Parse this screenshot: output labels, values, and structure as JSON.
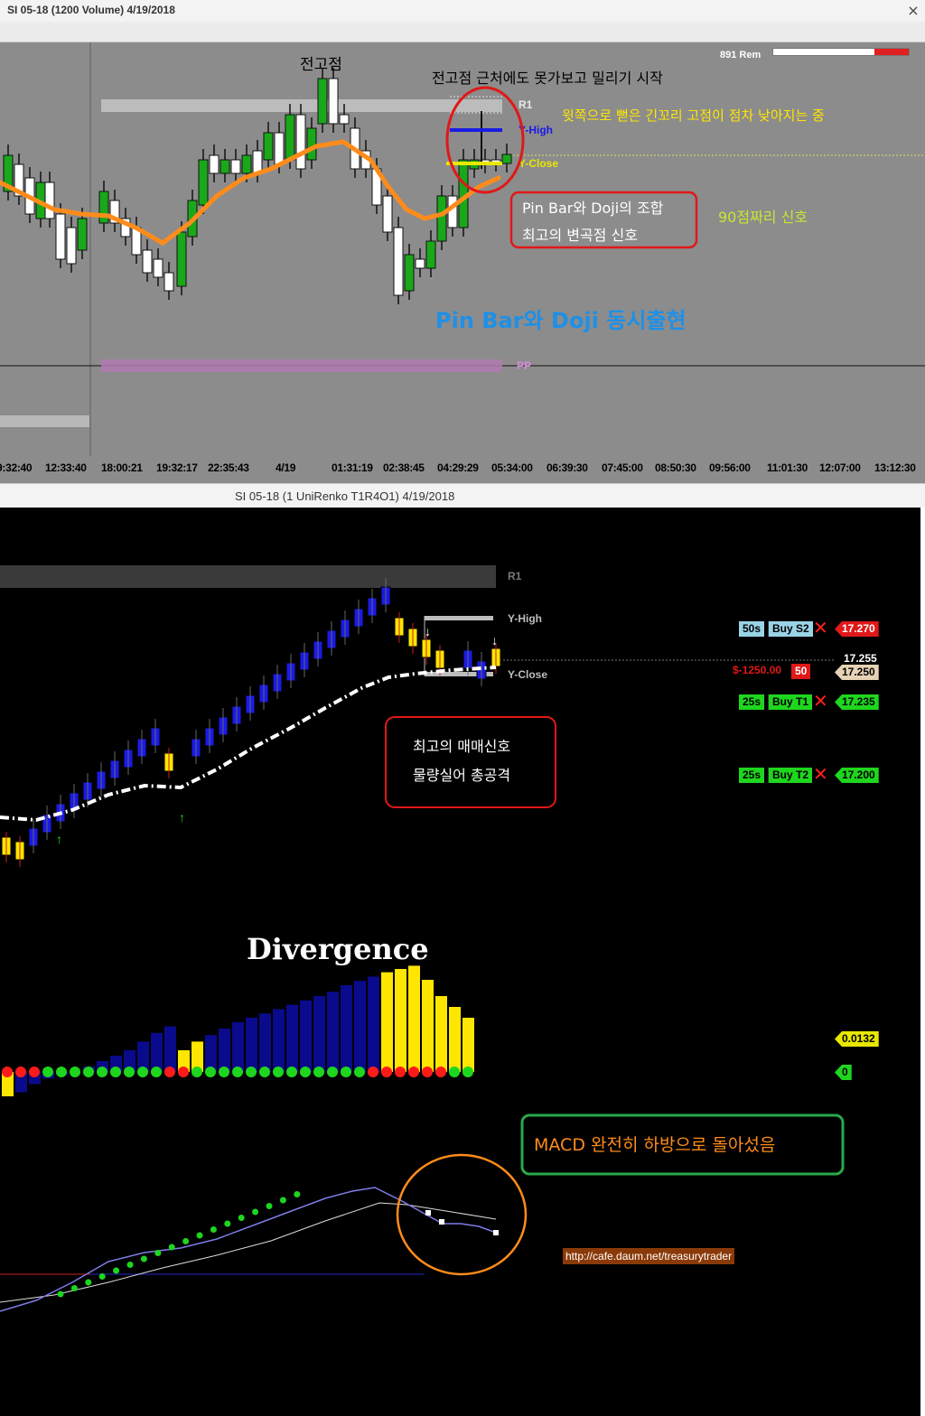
{
  "window1": {
    "title": "SI 05-18 (1200 Volume)  4/19/2018",
    "close_label": "×",
    "rem_text": "891 Rem",
    "xaxis_ticks": [
      "9:32:40",
      "12:33:40",
      "18:00:21",
      "19:32:17",
      "22:35:43",
      "4/19",
      "01:31:19",
      "02:38:45",
      "04:29:29",
      "05:34:00",
      "06:39:30",
      "07:45:00",
      "08:50:30",
      "09:56:00",
      "11:01:30",
      "12:07:00",
      "13:12:30"
    ],
    "level_labels": {
      "r1": "R1",
      "y_high": "Y-High",
      "y_close": "Y-Close",
      "pp": "PP"
    },
    "annotations": {
      "prev_high": "전고점",
      "push_back": "전고점 근처에도 못가보고 밀리기 시작",
      "upper_tail": "윗쪽으로 뻗은 긴꼬리 고점이 점차 낮아지는 중",
      "combo_line1": "Pin Bar와 Doji의 조합",
      "combo_line2": "최고의 변곡점 신호",
      "score": "90점짜리 신호",
      "simultaneous": "Pin Bar와 Doji 동시출현"
    },
    "colors": {
      "background": "#8c8c8c",
      "ema": "#ff8c1a",
      "bull": "#1aa81a",
      "bear": "#ffffff"
    }
  },
  "window2": {
    "title": "SI 05-18 (1 UniRenko T1R4O1)  4/19/2018",
    "level_labels": {
      "r1": "R1",
      "y_high": "Y-High",
      "y_close": "Y-Close"
    },
    "orders": [
      {
        "qty": "50s",
        "label": "Buy S2",
        "price": "17.270"
      },
      {
        "qty": "25s",
        "label": "Buy T1",
        "price": "17.235"
      },
      {
        "qty": "25s",
        "label": "Buy T2",
        "price": "17.200"
      }
    ],
    "last_price": "17.255",
    "position": {
      "pnl": "$-1250.00",
      "qty": "50",
      "price": "17.250"
    },
    "annotations": {
      "signal_line1": "최고의 매매신호",
      "signal_line2": "물량실어 총공격",
      "divergence": "Divergence",
      "macd_turn": "MACD 완전히 하방으로 돌아섰음",
      "url": "http://cafe.daum.net/treasurytrader"
    },
    "indicator_values": {
      "histogram": "0.0132",
      "zero": "0"
    },
    "colors": {
      "up": "#1a1ae6",
      "down": "#ffe600",
      "ema": "#ffffff",
      "macd": "#33dd33",
      "signal": "#ffffff"
    }
  }
}
